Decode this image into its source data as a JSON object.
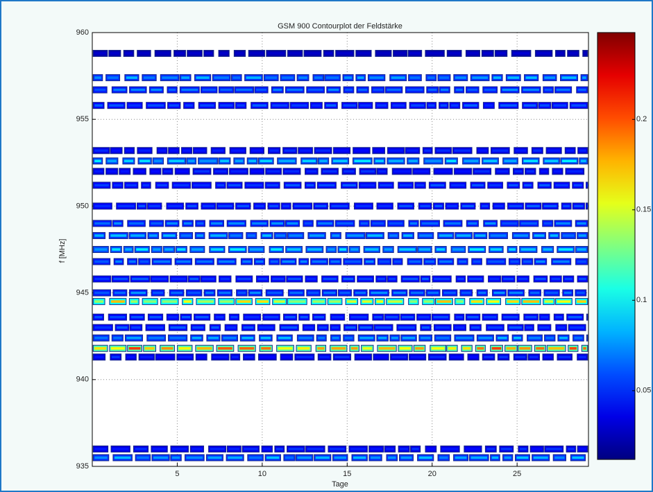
{
  "chart_data": {
    "type": "contour",
    "title": "GSM 900 Contourplot der Feldstärke",
    "xlabel": "Tage",
    "ylabel": "f [MHz]",
    "xlim": [
      0,
      29.2
    ],
    "xticks": [
      5,
      10,
      15,
      20,
      25
    ],
    "ylim": [
      935,
      960
    ],
    "yticks": [
      935,
      940,
      945,
      950,
      955,
      960
    ],
    "grid": true,
    "colormap": "jet",
    "clim": [
      0.012,
      0.248
    ],
    "cticks": [
      0.05,
      0.1,
      0.15,
      0.2
    ],
    "y": [
      958.8,
      957.4,
      956.7,
      955.8,
      953.2,
      952.6,
      952.0,
      951.2,
      950.0,
      949.0,
      948.3,
      947.5,
      946.8,
      945.8,
      945.0,
      944.5,
      943.6,
      943.0,
      942.4,
      941.8,
      941.3,
      936.0,
      935.5
    ],
    "values": [
      0.03,
      0.08,
      0.07,
      0.06,
      0.05,
      0.09,
      0.05,
      0.06,
      0.06,
      0.07,
      0.08,
      0.09,
      0.07,
      0.06,
      0.07,
      0.16,
      0.06,
      0.06,
      0.08,
      0.19,
      0.05,
      0.05,
      0.08
    ]
  }
}
